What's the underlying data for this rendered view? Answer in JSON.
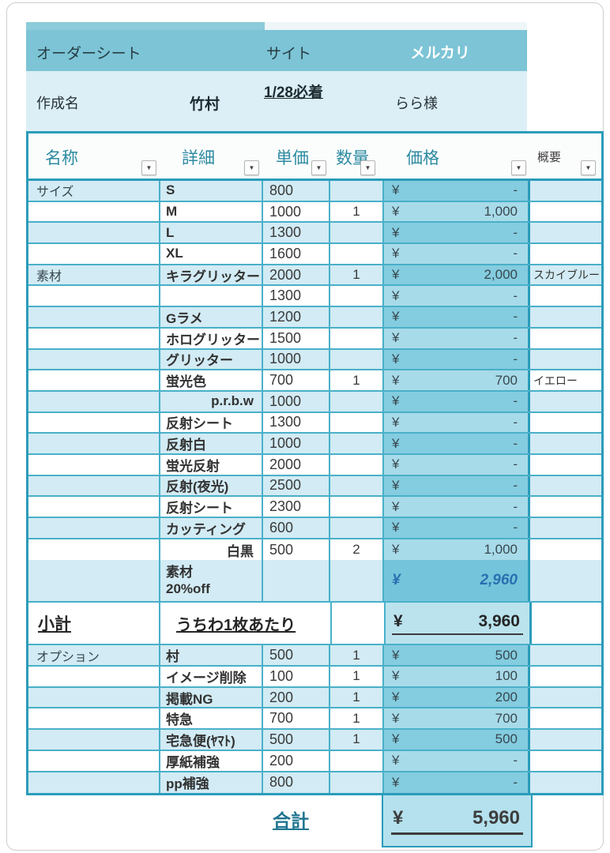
{
  "colors": {
    "accent_teal": "#7cc4d6",
    "grid_line": "#49b0c9",
    "stripe": "#d2ebf4",
    "price_column": "#84ccdf",
    "discount_text": "#2a6fb0",
    "header_text": "#2d8aa1"
  },
  "icons": {
    "filter_dropdown": "▼"
  },
  "title_bar": {
    "title": "オーダーシート",
    "site_label": "サイト",
    "site_value": "メルカリ"
  },
  "info_bar": {
    "label": "作成名",
    "name": "竹村",
    "deadline": "1/28必着",
    "customer": "らら様"
  },
  "table": {
    "currency": "¥",
    "columns": [
      {
        "label": "名称"
      },
      {
        "label": "詳細"
      },
      {
        "label": "単価"
      },
      {
        "label": "数量"
      },
      {
        "label": "価格"
      },
      {
        "label": "概要"
      }
    ],
    "rows": [
      {
        "name": "サイズ",
        "detail": "S",
        "unit": "800",
        "qty": "",
        "price": "-",
        "note": ""
      },
      {
        "name": "",
        "detail": "M",
        "unit": "1000",
        "qty": "1",
        "price": "1,000",
        "note": ""
      },
      {
        "name": "",
        "detail": "L",
        "unit": "1300",
        "qty": "",
        "price": "-",
        "note": ""
      },
      {
        "name": "",
        "detail": "XL",
        "unit": "1600",
        "qty": "",
        "price": "-",
        "note": ""
      },
      {
        "name": "素材",
        "detail": "キラグリッター",
        "unit": "2000",
        "qty": "1",
        "price": "2,000",
        "note": "スカイブルー"
      },
      {
        "name": "",
        "detail": "",
        "unit": "1300",
        "qty": "",
        "price": "-",
        "note": ""
      },
      {
        "name": "",
        "detail": "Gラメ",
        "unit": "1200",
        "qty": "",
        "price": "-",
        "note": ""
      },
      {
        "name": "",
        "detail": "ホログリッター",
        "unit": "1500",
        "qty": "",
        "price": "-",
        "note": ""
      },
      {
        "name": "",
        "detail": "グリッター",
        "unit": "1000",
        "qty": "",
        "price": "-",
        "note": ""
      },
      {
        "name": "",
        "detail": "蛍光色",
        "unit": "700",
        "qty": "1",
        "price": "700",
        "note": "イエロー"
      },
      {
        "name": "",
        "detail": "p.r.b.w",
        "unit": "1000",
        "qty": "",
        "price": "-",
        "note": "",
        "detail_align": "right"
      },
      {
        "name": "",
        "detail": "反射シート",
        "unit": "1300",
        "qty": "",
        "price": "-",
        "note": ""
      },
      {
        "name": "",
        "detail": "反射白",
        "unit": "1000",
        "qty": "",
        "price": "-",
        "note": ""
      },
      {
        "name": "",
        "detail": "蛍光反射",
        "unit": "2000",
        "qty": "",
        "price": "-",
        "note": ""
      },
      {
        "name": "",
        "detail": "反射(夜光)",
        "unit": "2500",
        "qty": "",
        "price": "-",
        "note": ""
      },
      {
        "name": "",
        "detail": "反射シート",
        "unit": "2300",
        "qty": "",
        "price": "-",
        "note": ""
      },
      {
        "name": "",
        "detail": "カッティング",
        "unit": "600",
        "qty": "",
        "price": "-",
        "note": ""
      },
      {
        "name": "",
        "detail": "白黒",
        "unit": "500",
        "qty": "2",
        "price": "1,000",
        "note": "",
        "detail_align": "right"
      },
      {
        "name": "オプション",
        "detail": "村",
        "unit": "500",
        "qty": "1",
        "price": "500",
        "note": ""
      },
      {
        "name": "",
        "detail": "イメージ削除",
        "unit": "100",
        "qty": "1",
        "price": "100",
        "note": ""
      },
      {
        "name": "",
        "detail": "掲載NG",
        "unit": "200",
        "qty": "1",
        "price": "200",
        "note": ""
      },
      {
        "name": "",
        "detail": "特急",
        "unit": "700",
        "qty": "1",
        "price": "700",
        "note": ""
      },
      {
        "name": "",
        "detail": "宅急便(ﾔﾏﾄ)",
        "unit": "500",
        "qty": "1",
        "price": "500",
        "note": ""
      },
      {
        "name": "",
        "detail": "厚紙補強",
        "unit": "200",
        "qty": "",
        "price": "-",
        "note": ""
      },
      {
        "name": "",
        "detail": "pp補強",
        "unit": "800",
        "qty": "",
        "price": "-",
        "note": ""
      }
    ],
    "discount": {
      "detail": "素材\n20%off",
      "price": "2,960"
    },
    "subtotal": {
      "label": "小計",
      "detail": "うちわ1枚あたり",
      "price": "3,960"
    },
    "total": {
      "label": "合計",
      "price": "5,960"
    }
  }
}
